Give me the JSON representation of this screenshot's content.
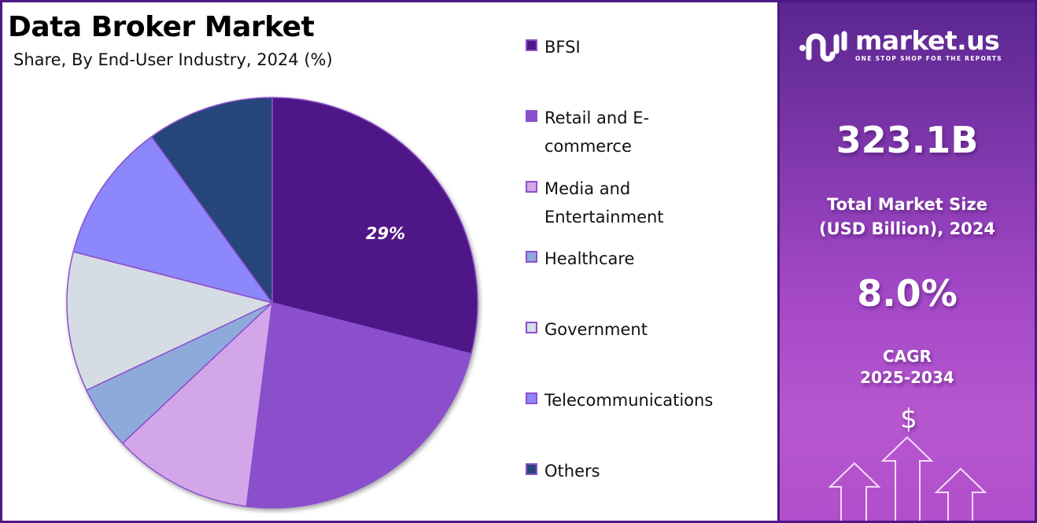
{
  "header": {
    "title": "Data Broker Market",
    "subtitle": "Share, By End-User Industry, 2024 (%)"
  },
  "legend": {
    "items": [
      {
        "label": "BFSI",
        "color": "#4f1787"
      },
      {
        "label": "Retail and E-\ncommerce",
        "color": "#8c4fcc"
      },
      {
        "label": "Media and\nEntertainment",
        "color": "#d3a6ea"
      },
      {
        "label": "Healthcare",
        "color": "#8eaadb"
      },
      {
        "label": "Government",
        "color": "#d6dce4"
      },
      {
        "label": "Telecommunications",
        "color": "#8c87fb"
      },
      {
        "label": "Others",
        "color": "#27457a"
      }
    ]
  },
  "pie": {
    "data_label": "29%"
  },
  "panel": {
    "logo_name": "market.us",
    "logo_tagline": "ONE STOP SHOP FOR THE REPORTS",
    "market_size_value": "323.1B",
    "market_size_label_line1": "Total Market Size",
    "market_size_label_line2": "(USD Billion), 2024",
    "cagr_value": "8.0%",
    "cagr_label_line1": "CAGR",
    "cagr_label_line2": "2025-2034",
    "currency_symbol": "$"
  },
  "chart_data": {
    "type": "pie",
    "title": "Data Broker Market",
    "subtitle": "Share, By End-User Industry, 2024 (%)",
    "categories": [
      "BFSI",
      "Retail and E-commerce",
      "Media and Entertainment",
      "Healthcare",
      "Government",
      "Telecommunications",
      "Others"
    ],
    "values": [
      29,
      23,
      11,
      5,
      11,
      11,
      10
    ],
    "colors": [
      "#4f1787",
      "#8c4fcc",
      "#d3a6ea",
      "#8eaadb",
      "#d6dce4",
      "#8c87fb",
      "#27457a"
    ],
    "data_labels": {
      "BFSI": "29%"
    },
    "legend_position": "right",
    "start_angle": "12 o'clock, clockwise"
  }
}
